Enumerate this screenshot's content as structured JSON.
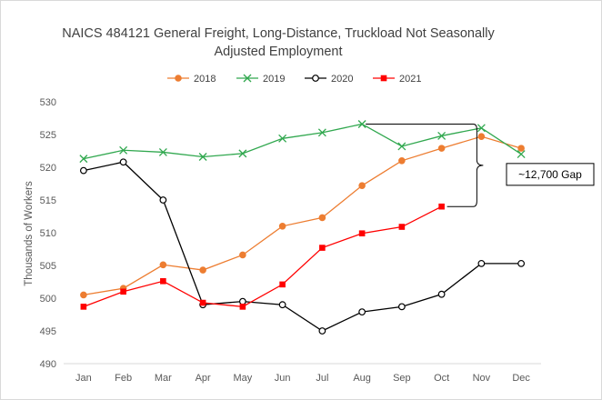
{
  "chart_data": {
    "type": "line",
    "title_lines": [
      "NAICS 484121 General Freight, Long-Distance, Truckload Not Seasonally",
      "Adjusted Employment"
    ],
    "xlabel": "",
    "ylabel": "Thousands of Workers",
    "categories": [
      "Jan",
      "Feb",
      "Mar",
      "Apr",
      "May",
      "Jun",
      "Jul",
      "Aug",
      "Sep",
      "Oct",
      "Nov",
      "Dec"
    ],
    "ylim": [
      490,
      530
    ],
    "yticks": [
      490,
      495,
      500,
      505,
      510,
      515,
      520,
      525,
      530
    ],
    "grid": false,
    "legend_position": "top",
    "series": [
      {
        "name": "2018",
        "color": "#ed7d31",
        "marker": "circle-filled",
        "values": [
          500.5,
          501.5,
          505.1,
          504.3,
          506.6,
          511.0,
          512.3,
          517.2,
          521.0,
          522.9,
          524.7,
          522.9
        ]
      },
      {
        "name": "2019",
        "color": "#31a84f",
        "marker": "x",
        "values": [
          521.3,
          522.6,
          522.3,
          521.6,
          522.1,
          524.4,
          525.3,
          526.6,
          523.2,
          524.8,
          526.0,
          522.0
        ]
      },
      {
        "name": "2020",
        "color": "#000000",
        "marker": "circle-open",
        "values": [
          519.5,
          520.8,
          515.0,
          499.0,
          499.5,
          499.0,
          495.0,
          497.9,
          498.7,
          500.6,
          505.3,
          505.3
        ]
      },
      {
        "name": "2021",
        "color": "#ff0000",
        "marker": "square",
        "values": [
          498.7,
          501.0,
          502.6,
          499.3,
          498.7,
          502.1,
          507.7,
          509.9,
          510.9,
          514.0,
          null,
          null
        ]
      }
    ],
    "annotation": {
      "text": "~12,700 Gap"
    }
  }
}
